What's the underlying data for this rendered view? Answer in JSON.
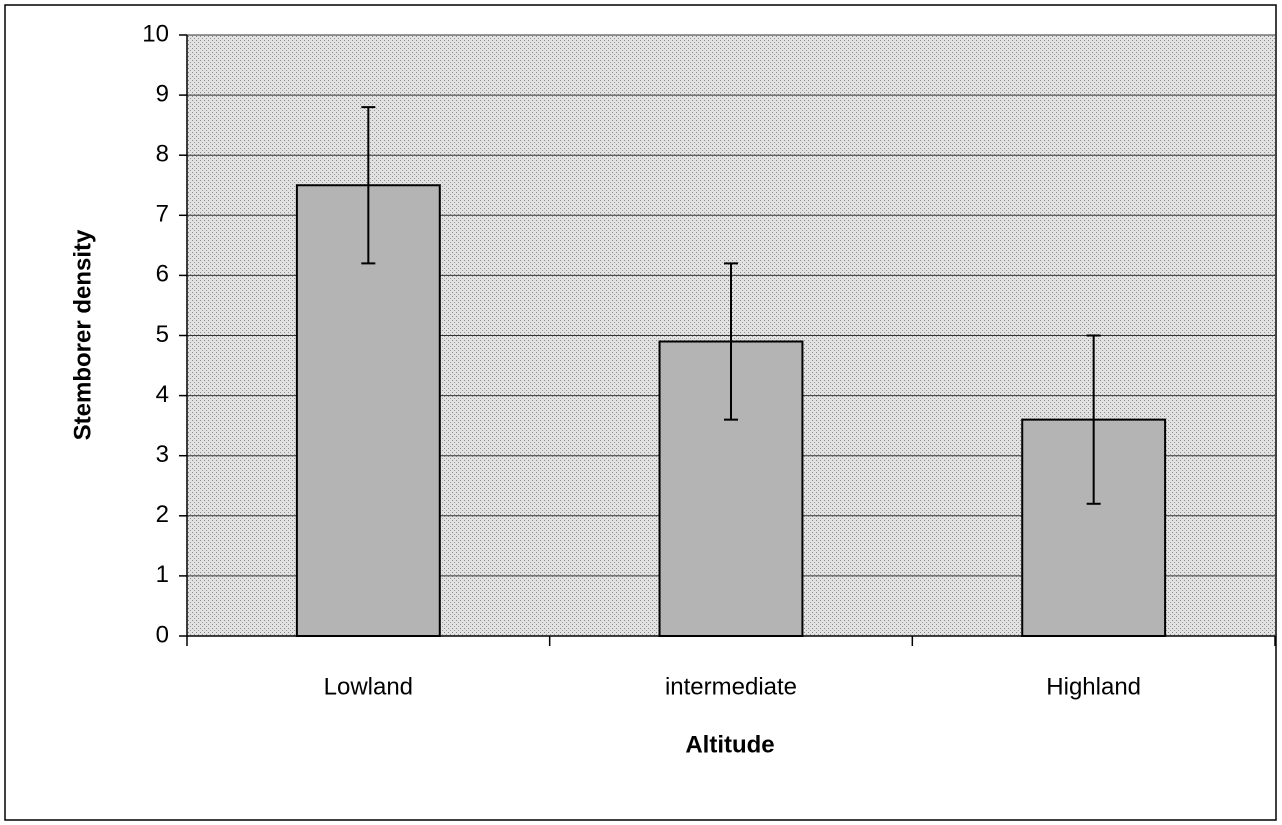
{
  "chart_data": {
    "type": "bar",
    "x_label": "Altitude",
    "y_label": "Stemborer density",
    "categories": [
      "Lowland",
      "intermediate",
      "Highland"
    ],
    "values": [
      7.5,
      4.9,
      3.6
    ],
    "errors": [
      1.3,
      1.3,
      1.4
    ],
    "color": "#b4b4b4",
    "ylim": [
      0,
      10
    ],
    "yticks": [
      0,
      1,
      2,
      3,
      4,
      5,
      6,
      7,
      8,
      9,
      10
    ],
    "grid": true
  }
}
